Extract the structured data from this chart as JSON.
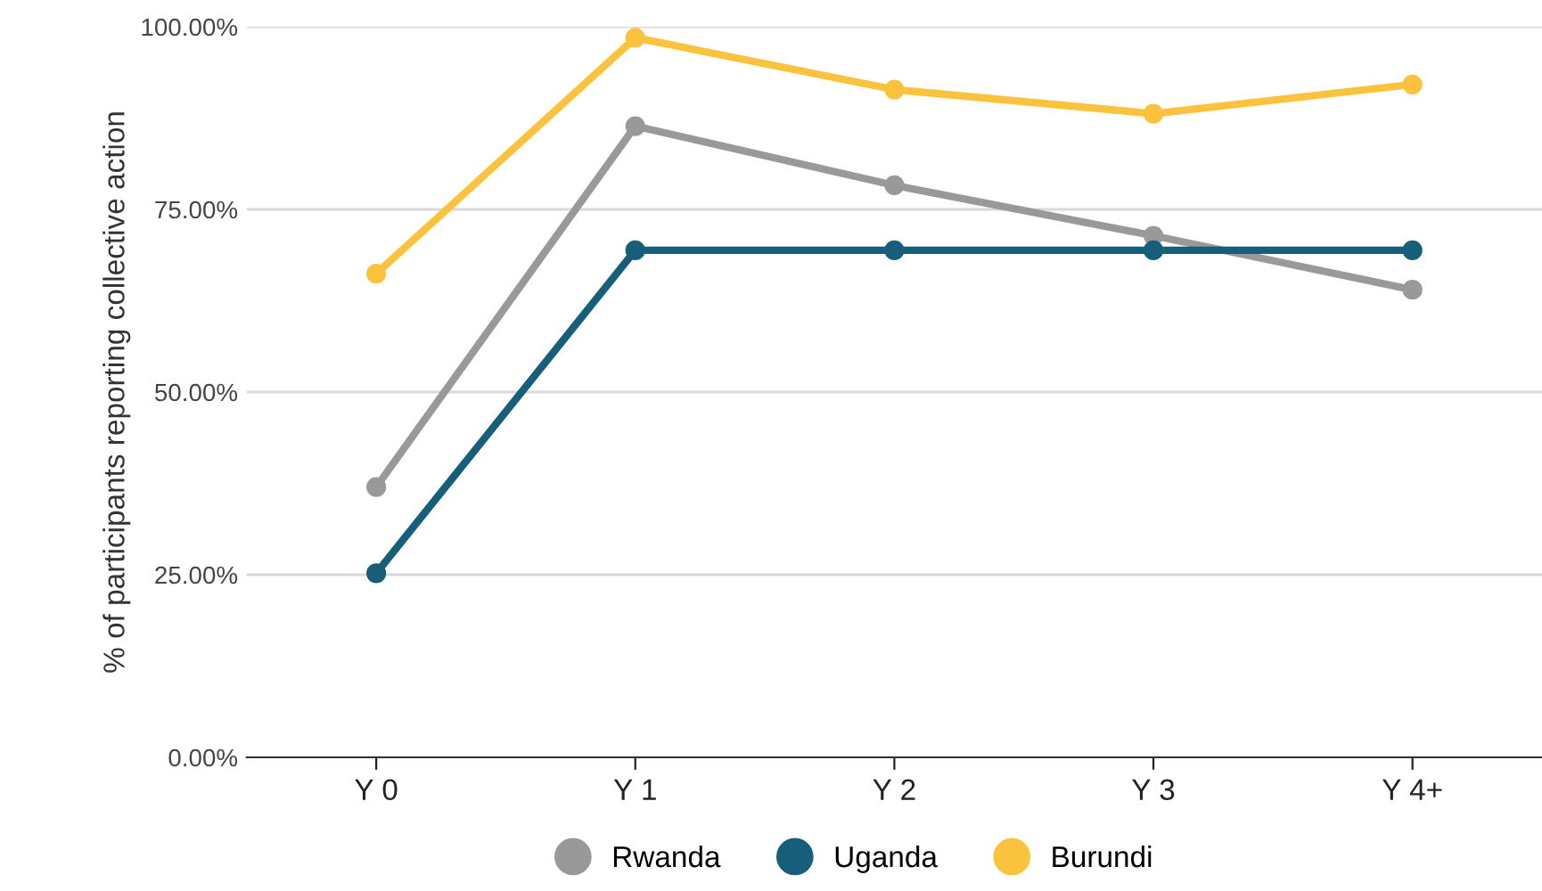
{
  "chart_data": {
    "type": "line",
    "ylabel": "% of participants reporting collective action",
    "categories": [
      "Y 0",
      "Y 1",
      "Y 2",
      "Y 3",
      "Y 4+"
    ],
    "series": [
      {
        "name": "Rwanda",
        "color": "#999999",
        "values": [
          37.0,
          86.4,
          78.3,
          71.4,
          64.0
        ]
      },
      {
        "name": "Uganda",
        "color": "#165e7a",
        "values": [
          25.2,
          69.4,
          69.4,
          69.4,
          69.4
        ]
      },
      {
        "name": "Burundi",
        "color": "#fbc33d",
        "values": [
          66.2,
          98.5,
          91.4,
          88.1,
          92.1
        ]
      }
    ],
    "ylim": [
      0,
      100
    ],
    "yticks": [
      {
        "value": 0,
        "label": "0.00%"
      },
      {
        "value": 25,
        "label": "25.00%"
      },
      {
        "value": 50,
        "label": "50.00%"
      },
      {
        "value": 75,
        "label": "75.00%"
      },
      {
        "value": 100,
        "label": "100.00%"
      }
    ],
    "grid": "y",
    "legend": "bottom",
    "marker": "circle",
    "line_style": "solid"
  }
}
